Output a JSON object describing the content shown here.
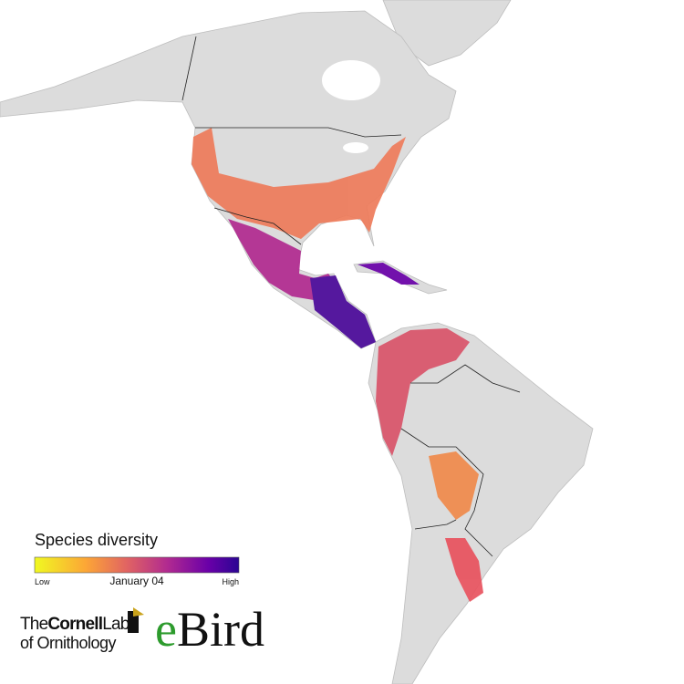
{
  "legend": {
    "title": "Species diversity",
    "low": "Low",
    "date": "January 04",
    "high": "High"
  },
  "logo": {
    "line1": [
      "The",
      "Cornell",
      "Lab"
    ],
    "line2": "of Ornithology",
    "brand": [
      "e",
      "Bird"
    ]
  }
}
